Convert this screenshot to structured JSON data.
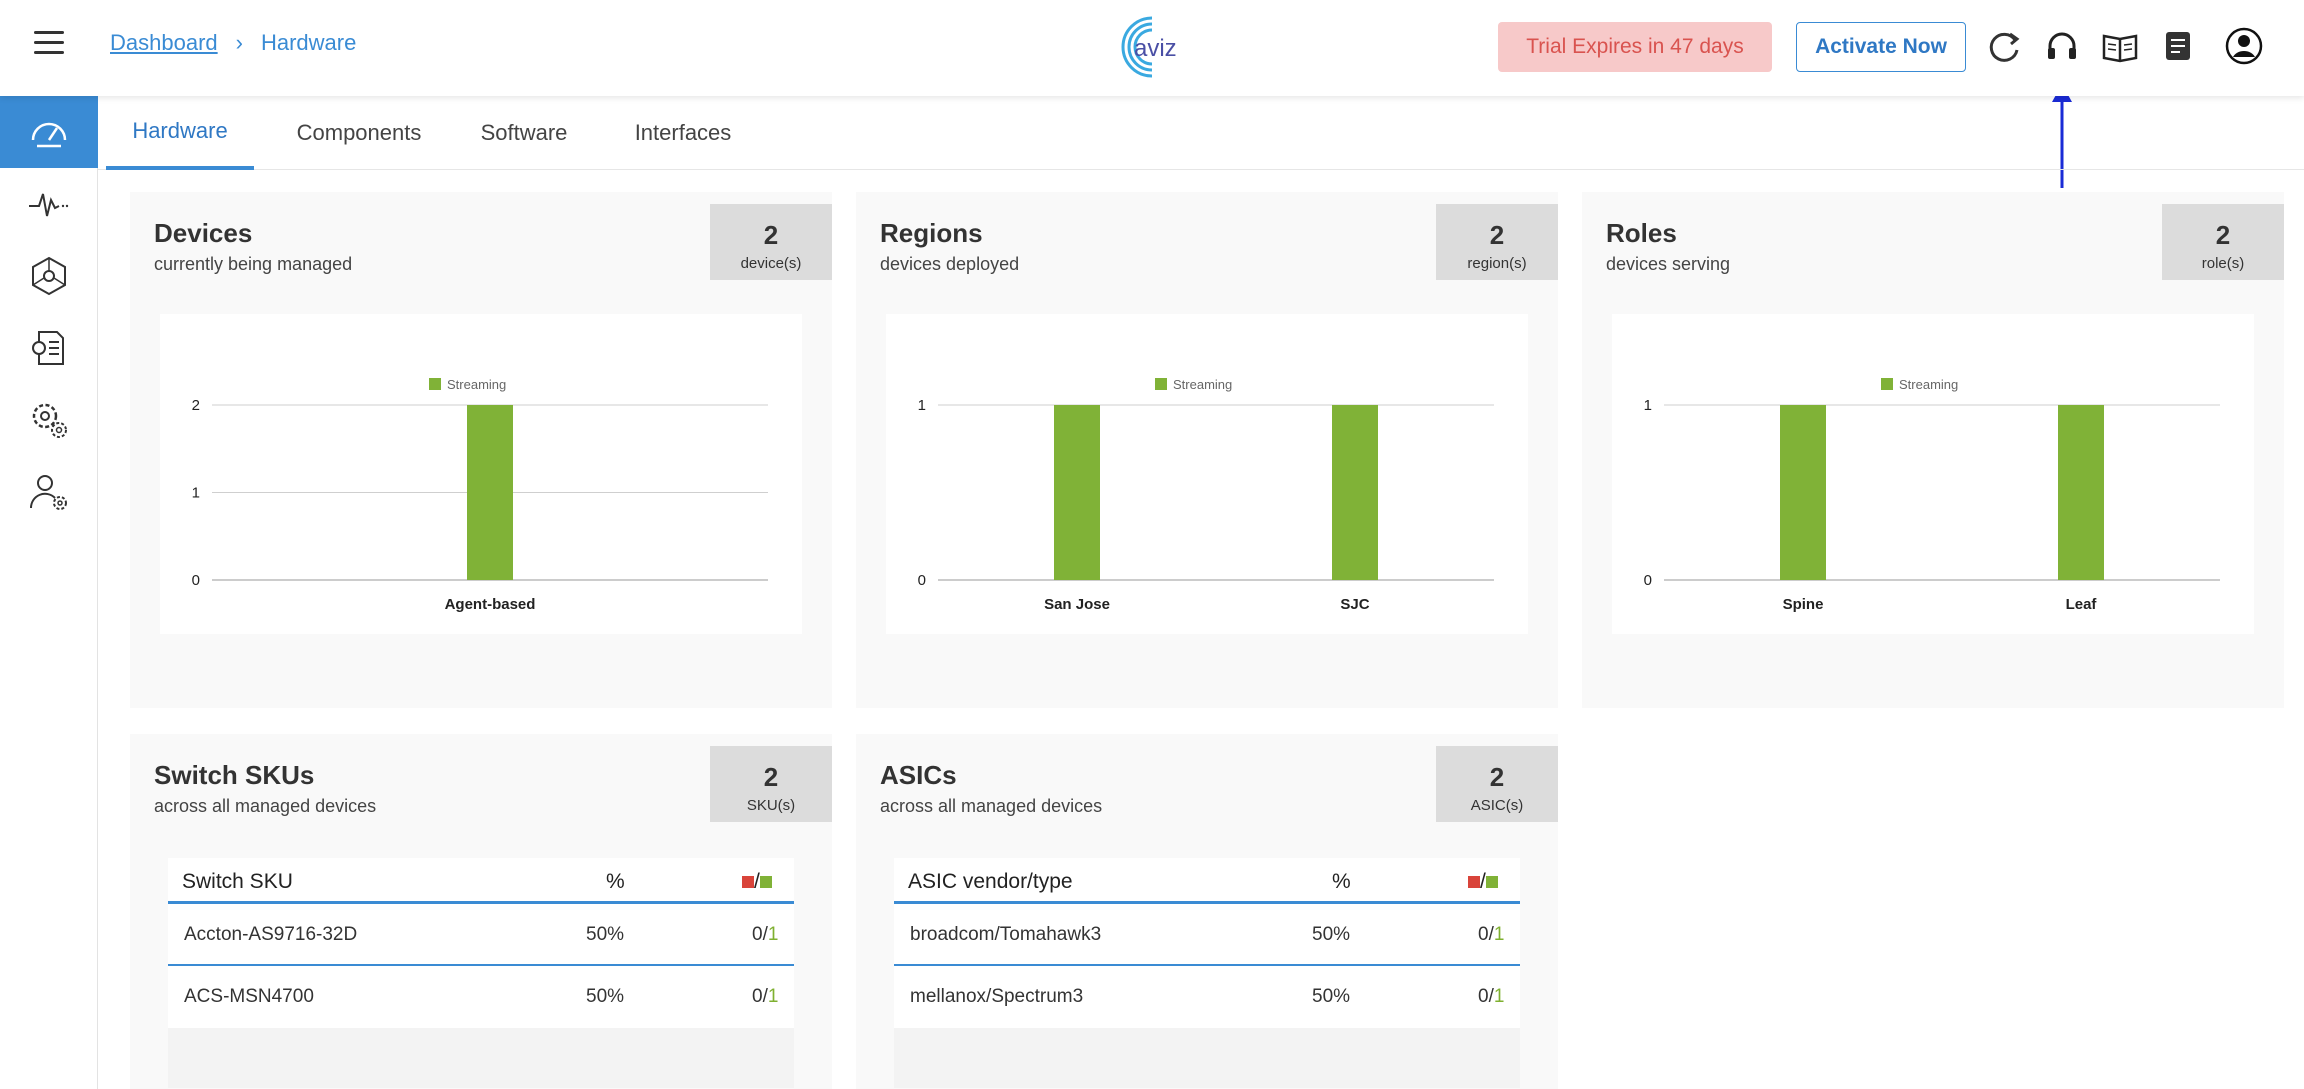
{
  "header": {
    "breadcrumb": {
      "parent": "Dashboard",
      "separator": "›",
      "current": "Hardware"
    },
    "logo_text": "aviz",
    "trial": "Trial Expires in 47 days",
    "activate": "Activate Now",
    "icons": [
      "refresh-icon",
      "headset-icon",
      "book-icon",
      "notes-icon",
      "user-icon"
    ]
  },
  "sidebar": {
    "items": [
      "dashboard-icon",
      "pulse-icon",
      "network-icon",
      "config-icon",
      "settings-icon",
      "user-settings-icon"
    ]
  },
  "tabs": [
    {
      "label": "Hardware",
      "active": true
    },
    {
      "label": "Components",
      "active": false
    },
    {
      "label": "Software",
      "active": false
    },
    {
      "label": "Interfaces",
      "active": false
    }
  ],
  "cards": {
    "devices": {
      "title": "Devices",
      "subtitle": "currently being managed",
      "count": "2",
      "unit": "device(s)"
    },
    "regions": {
      "title": "Regions",
      "subtitle": "devices deployed",
      "count": "2",
      "unit": "region(s)"
    },
    "roles": {
      "title": "Roles",
      "subtitle": "devices serving",
      "count": "2",
      "unit": "role(s)"
    },
    "skus": {
      "title": "Switch SKUs",
      "subtitle": "across all managed devices",
      "count": "2",
      "unit": "SKU(s)"
    },
    "asics": {
      "title": "ASICs",
      "subtitle": "across all managed devices",
      "count": "2",
      "unit": "ASIC(s)"
    }
  },
  "chart_data": [
    {
      "type": "bar",
      "categories": [
        "Agent-based"
      ],
      "series": [
        {
          "name": "Streaming",
          "values": [
            2
          ]
        }
      ],
      "ylim": [
        0,
        2
      ],
      "yticks": [
        0,
        1,
        2
      ],
      "color": "#80b237",
      "legend": "top"
    },
    {
      "type": "bar",
      "categories": [
        "San Jose",
        "SJC"
      ],
      "series": [
        {
          "name": "Streaming",
          "values": [
            1,
            1
          ]
        }
      ],
      "ylim": [
        0,
        1
      ],
      "yticks": [
        0,
        1
      ],
      "color": "#80b237",
      "legend": "top"
    },
    {
      "type": "bar",
      "categories": [
        "Spine",
        "Leaf"
      ],
      "series": [
        {
          "name": "Streaming",
          "values": [
            1,
            1
          ]
        }
      ],
      "ylim": [
        0,
        1
      ],
      "yticks": [
        0,
        1
      ],
      "color": "#80b237",
      "legend": "top"
    }
  ],
  "tables": {
    "skus": {
      "headers": [
        "Switch SKU",
        "%",
        "/"
      ],
      "rows": [
        {
          "name": "Accton-AS9716-32D",
          "pct": "50%",
          "red": "0",
          "slash": "/",
          "green": "1"
        },
        {
          "name": "ACS-MSN4700",
          "pct": "50%",
          "red": "0",
          "slash": "/",
          "green": "1"
        }
      ]
    },
    "asics": {
      "headers": [
        "ASIC vendor/type",
        "%",
        "/"
      ],
      "rows": [
        {
          "name": "broadcom/Tomahawk3",
          "pct": "50%",
          "red": "0",
          "slash": "/",
          "green": "1"
        },
        {
          "name": "mellanox/Spectrum3",
          "pct": "50%",
          "red": "0",
          "slash": "/",
          "green": "1"
        }
      ]
    }
  },
  "colors": {
    "accent": "#3a8bd4",
    "bar": "#80b237",
    "status_red": "#d9443a",
    "trial_bg": "#f7c9c9"
  }
}
